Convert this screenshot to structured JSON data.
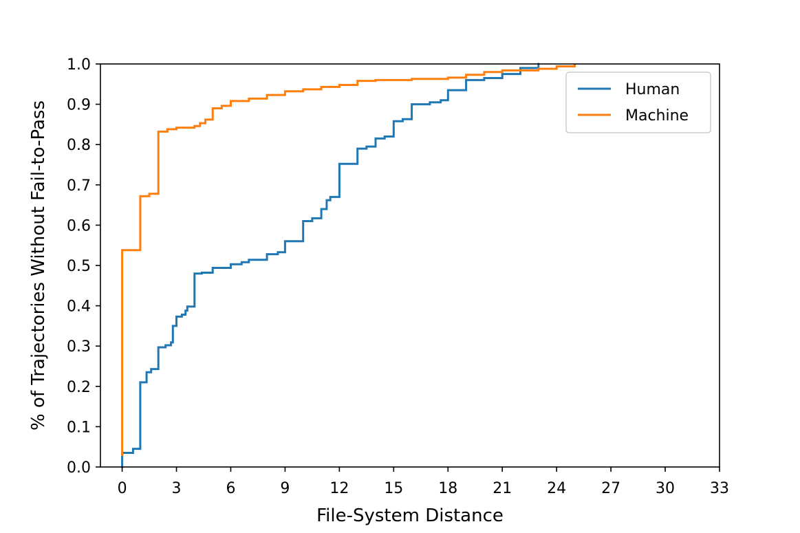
{
  "chart_data": {
    "type": "line",
    "step": true,
    "title": "",
    "xlabel": "File-System Distance",
    "ylabel": "% of Trajectories Without Fail-to-Pass",
    "xlim": [
      -1.2,
      33
    ],
    "ylim": [
      0.0,
      1.0
    ],
    "xticks": [
      0,
      3,
      6,
      9,
      12,
      15,
      18,
      21,
      24,
      27,
      30,
      33
    ],
    "yticks": [
      0.0,
      0.1,
      0.2,
      0.3,
      0.4,
      0.5,
      0.6,
      0.7,
      0.8,
      0.9,
      1.0
    ],
    "xtick_labels": [
      "0",
      "3",
      "6",
      "9",
      "12",
      "15",
      "18",
      "21",
      "24",
      "27",
      "30",
      "33"
    ],
    "ytick_labels": [
      "0.0",
      "0.1",
      "0.2",
      "0.3",
      "0.4",
      "0.5",
      "0.6",
      "0.7",
      "0.8",
      "0.9",
      "1.0"
    ],
    "grid": false,
    "legend_position": "upper right",
    "series": [
      {
        "name": "Human",
        "color": "#1f77b4",
        "points": [
          [
            0,
            0.0
          ],
          [
            0,
            0.035
          ],
          [
            0.6,
            0.035
          ],
          [
            0.6,
            0.045
          ],
          [
            1.0,
            0.045
          ],
          [
            1.0,
            0.21
          ],
          [
            1.35,
            0.21
          ],
          [
            1.35,
            0.235
          ],
          [
            1.6,
            0.235
          ],
          [
            1.6,
            0.243
          ],
          [
            2.0,
            0.243
          ],
          [
            2.0,
            0.297
          ],
          [
            2.4,
            0.297
          ],
          [
            2.4,
            0.302
          ],
          [
            2.7,
            0.302
          ],
          [
            2.7,
            0.309
          ],
          [
            2.8,
            0.309
          ],
          [
            2.8,
            0.35
          ],
          [
            3.0,
            0.35
          ],
          [
            3.0,
            0.373
          ],
          [
            3.3,
            0.373
          ],
          [
            3.3,
            0.378
          ],
          [
            3.5,
            0.378
          ],
          [
            3.5,
            0.388
          ],
          [
            3.6,
            0.388
          ],
          [
            3.6,
            0.398
          ],
          [
            4.0,
            0.398
          ],
          [
            4.0,
            0.48
          ],
          [
            4.4,
            0.48
          ],
          [
            4.4,
            0.482
          ],
          [
            5.0,
            0.482
          ],
          [
            5.0,
            0.494
          ],
          [
            6.0,
            0.494
          ],
          [
            6.0,
            0.503
          ],
          [
            6.6,
            0.503
          ],
          [
            6.6,
            0.508
          ],
          [
            7.0,
            0.508
          ],
          [
            7.0,
            0.514
          ],
          [
            8.0,
            0.514
          ],
          [
            8.0,
            0.528
          ],
          [
            8.6,
            0.528
          ],
          [
            8.6,
            0.533
          ],
          [
            9.0,
            0.533
          ],
          [
            9.0,
            0.56
          ],
          [
            10.0,
            0.56
          ],
          [
            10.0,
            0.61
          ],
          [
            10.5,
            0.61
          ],
          [
            10.5,
            0.617
          ],
          [
            11.0,
            0.617
          ],
          [
            11.0,
            0.64
          ],
          [
            11.3,
            0.64
          ],
          [
            11.3,
            0.662
          ],
          [
            11.5,
            0.662
          ],
          [
            11.5,
            0.67
          ],
          [
            12.0,
            0.67
          ],
          [
            12.0,
            0.752
          ],
          [
            13.0,
            0.752
          ],
          [
            13.0,
            0.79
          ],
          [
            13.5,
            0.79
          ],
          [
            13.5,
            0.795
          ],
          [
            14.0,
            0.795
          ],
          [
            14.0,
            0.815
          ],
          [
            14.5,
            0.815
          ],
          [
            14.5,
            0.82
          ],
          [
            15.0,
            0.82
          ],
          [
            15.0,
            0.858
          ],
          [
            15.5,
            0.858
          ],
          [
            15.5,
            0.863
          ],
          [
            16.0,
            0.863
          ],
          [
            16.0,
            0.9
          ],
          [
            17.0,
            0.9
          ],
          [
            17.0,
            0.905
          ],
          [
            17.6,
            0.905
          ],
          [
            17.6,
            0.91
          ],
          [
            18.0,
            0.91
          ],
          [
            18.0,
            0.935
          ],
          [
            19.0,
            0.935
          ],
          [
            19.0,
            0.96
          ],
          [
            20.0,
            0.96
          ],
          [
            20.0,
            0.965
          ],
          [
            21.0,
            0.965
          ],
          [
            21.0,
            0.975
          ],
          [
            22.0,
            0.975
          ],
          [
            22.0,
            0.99
          ],
          [
            23.0,
            0.99
          ],
          [
            23.0,
            1.0
          ]
        ]
      },
      {
        "name": "Machine",
        "color": "#ff7f0e",
        "points": [
          [
            0,
            0.03
          ],
          [
            0,
            0.538
          ],
          [
            1.0,
            0.538
          ],
          [
            1.0,
            0.672
          ],
          [
            1.5,
            0.672
          ],
          [
            1.5,
            0.678
          ],
          [
            2.0,
            0.678
          ],
          [
            2.0,
            0.832
          ],
          [
            2.5,
            0.832
          ],
          [
            2.5,
            0.838
          ],
          [
            3.0,
            0.838
          ],
          [
            3.0,
            0.842
          ],
          [
            4.0,
            0.842
          ],
          [
            4.0,
            0.846
          ],
          [
            4.3,
            0.846
          ],
          [
            4.3,
            0.853
          ],
          [
            4.6,
            0.853
          ],
          [
            4.6,
            0.862
          ],
          [
            5.0,
            0.862
          ],
          [
            5.0,
            0.89
          ],
          [
            5.5,
            0.89
          ],
          [
            5.5,
            0.896
          ],
          [
            6.0,
            0.896
          ],
          [
            6.0,
            0.908
          ],
          [
            7.0,
            0.908
          ],
          [
            7.0,
            0.914
          ],
          [
            8.0,
            0.914
          ],
          [
            8.0,
            0.923
          ],
          [
            9.0,
            0.923
          ],
          [
            9.0,
            0.932
          ],
          [
            10.0,
            0.932
          ],
          [
            10.0,
            0.937
          ],
          [
            11.0,
            0.937
          ],
          [
            11.0,
            0.943
          ],
          [
            12.0,
            0.943
          ],
          [
            12.0,
            0.948
          ],
          [
            13.0,
            0.948
          ],
          [
            13.0,
            0.958
          ],
          [
            14.0,
            0.958
          ],
          [
            14.0,
            0.96
          ],
          [
            16.0,
            0.96
          ],
          [
            16.0,
            0.963
          ],
          [
            18.0,
            0.963
          ],
          [
            18.0,
            0.966
          ],
          [
            19.0,
            0.966
          ],
          [
            19.0,
            0.973
          ],
          [
            20.0,
            0.973
          ],
          [
            20.0,
            0.98
          ],
          [
            21.0,
            0.98
          ],
          [
            21.0,
            0.984
          ],
          [
            23.0,
            0.984
          ],
          [
            23.0,
            0.988
          ],
          [
            24.0,
            0.988
          ],
          [
            24.0,
            0.994
          ],
          [
            25.0,
            0.994
          ],
          [
            25.0,
            0.998
          ]
        ]
      }
    ]
  }
}
